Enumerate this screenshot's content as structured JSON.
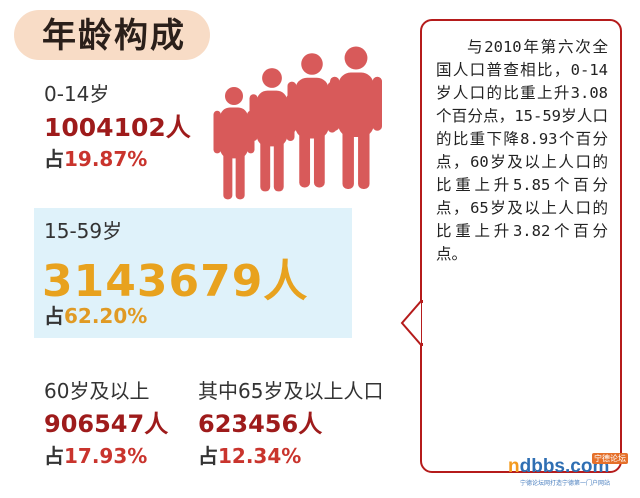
{
  "title": "年龄构成",
  "groups": {
    "g0_14": {
      "label": "0-14岁",
      "count": "1004102人",
      "share_prefix": "占",
      "share": "19.87%"
    },
    "g15_59": {
      "label": "15-59岁",
      "count": "3143679人",
      "share_prefix": "占",
      "share": "62.20%"
    },
    "g60": {
      "label": "60岁及以上",
      "count": "906547人",
      "share_prefix": "占",
      "share": "17.93%"
    },
    "g65": {
      "label": "其中65岁及以上人口",
      "count": "623456人",
      "share_prefix": "占",
      "share": "12.34%"
    }
  },
  "note": "与2010年第六次全国人口普查相比，0-14岁人口的比重上升3.08个百分点，15-59岁人口的比重下降8.93个百分点，60岁及以上人口的比重上升5.85个百分点，65岁及以上人口的比重上升3.82个百分点。",
  "logo": {
    "text_a": "n",
    "text_b": "dbbs.com",
    "badge": "宁德论坛",
    "sub": "宁德论坛网打造宁德第一门户网站"
  },
  "colors": {
    "figure": "#d85a5a",
    "accent_red": "#9e1b1b",
    "accent_orange": "#e8a21e",
    "highlight_bg": "#dff2fa",
    "border": "#b51b1b"
  }
}
